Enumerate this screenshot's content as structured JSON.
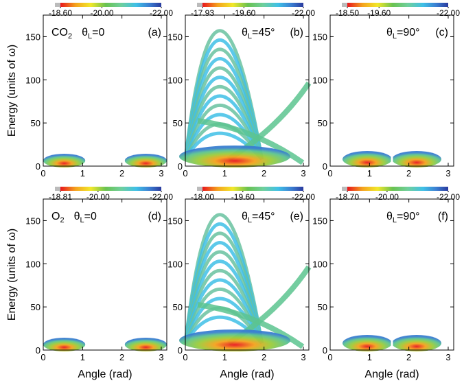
{
  "chart_data": [
    {
      "type": "contour",
      "molecule": "CO",
      "molecule_sub": "2",
      "theta": "θ",
      "theta_sub": "L",
      "theta_value": "=0",
      "panel": "(a)",
      "colorbar_ticks": [
        {
          "value": -18.6,
          "label": "-18.60"
        },
        {
          "value": -20,
          "label": "-20.00"
        },
        {
          "value": -22,
          "label": "-22.00"
        }
      ],
      "xlim": [
        0,
        3.14
      ],
      "xticks": [
        0,
        1,
        2,
        3
      ],
      "ylim": [
        0,
        175
      ],
      "yticks": [
        0,
        50,
        100,
        150
      ],
      "y_label": "Energy (units of ω)"
    },
    {
      "type": "contour",
      "theta": "θ",
      "theta_sub": "L",
      "theta_value": "=45°",
      "panel": "(b)",
      "colorbar_ticks": [
        {
          "value": -17.93,
          "label": "-17.93"
        },
        {
          "value": -19.6,
          "label": "-19.60"
        },
        {
          "value": -22,
          "label": "-22.00"
        }
      ],
      "xlim": [
        0,
        3.14
      ],
      "xticks": [
        0,
        1,
        2,
        3
      ],
      "ylim": [
        0,
        175
      ],
      "yticks": [
        0,
        50,
        100,
        150
      ]
    },
    {
      "type": "contour",
      "theta": "θ",
      "theta_sub": "L",
      "theta_value": "=90°",
      "panel": "(c)",
      "colorbar_ticks": [
        {
          "value": -18.5,
          "label": "-18.50"
        },
        {
          "value": -19.6,
          "label": "-19.60"
        },
        {
          "value": -22,
          "label": "-22.00"
        }
      ],
      "xlim": [
        0,
        3.14
      ],
      "xticks": [
        0,
        1,
        2,
        3
      ],
      "ylim": [
        0,
        175
      ],
      "yticks": [
        0,
        50,
        100,
        150
      ]
    },
    {
      "type": "contour",
      "molecule": "O",
      "molecule_sub": "2",
      "theta": "θ",
      "theta_sub": "L",
      "theta_value": "=0",
      "panel": "(d)",
      "colorbar_ticks": [
        {
          "value": -18.81,
          "label": "-18.81"
        },
        {
          "value": -20,
          "label": "-20.00"
        },
        {
          "value": -22,
          "label": "-22.00"
        }
      ],
      "xlim": [
        0,
        3.14
      ],
      "xticks": [
        0,
        1,
        2,
        3
      ],
      "ylim": [
        0,
        175
      ],
      "yticks": [
        0,
        50,
        100,
        150
      ],
      "y_label": "Energy (units of ω)",
      "x_label": "Angle (rad)"
    },
    {
      "type": "contour",
      "theta": "θ",
      "theta_sub": "L",
      "theta_value": "=45°",
      "panel": "(e)",
      "colorbar_ticks": [
        {
          "value": -18,
          "label": "-18.00"
        },
        {
          "value": -19.6,
          "label": "-19.60"
        },
        {
          "value": -22,
          "label": "-22.00"
        }
      ],
      "xlim": [
        0,
        3.14
      ],
      "xticks": [
        0,
        1,
        2,
        3
      ],
      "ylim": [
        0,
        175
      ],
      "yticks": [
        0,
        50,
        100,
        150
      ],
      "x_label": "Angle (rad)"
    },
    {
      "type": "contour",
      "theta": "θ",
      "theta_sub": "L",
      "theta_value": "=90°",
      "panel": "(f)",
      "colorbar_ticks": [
        {
          "value": -18.7,
          "label": "-18.70"
        },
        {
          "value": -20,
          "label": "-20.00"
        },
        {
          "value": -22,
          "label": "-22.00"
        }
      ],
      "xlim": [
        0,
        3.14
      ],
      "xticks": [
        0,
        1,
        2,
        3
      ],
      "ylim": [
        0,
        175
      ],
      "yticks": [
        0,
        50,
        100,
        150
      ],
      "x_label": "Angle (rad)"
    }
  ]
}
